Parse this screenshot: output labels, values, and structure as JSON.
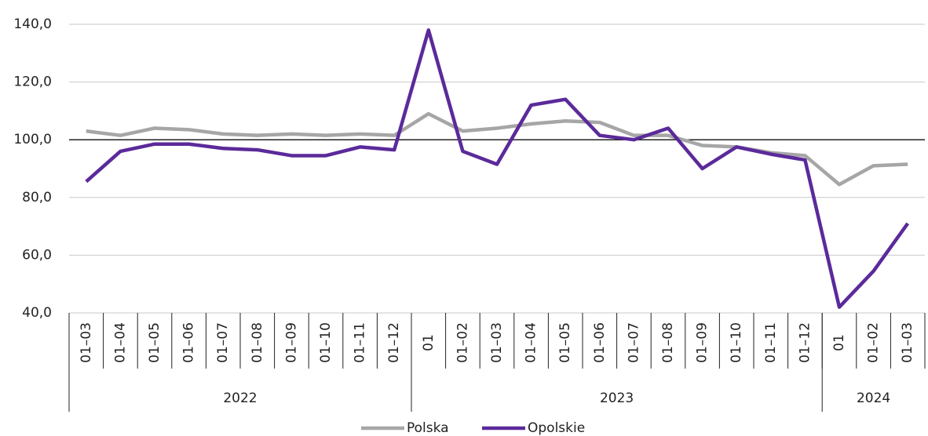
{
  "chart_data": {
    "type": "line",
    "categories": [
      "01–03",
      "01–04",
      "01–05",
      "01–06",
      "01–07",
      "01–08",
      "01–09",
      "01–10",
      "01–11",
      "01–12",
      "01",
      "01–02",
      "01–03",
      "01–04",
      "01–05",
      "01–06",
      "01–07",
      "01–08",
      "01–09",
      "01–10",
      "01–11",
      "01–12",
      "01",
      "01–02",
      "01–03"
    ],
    "groups": [
      {
        "name": "2022",
        "count": 10
      },
      {
        "name": "2023",
        "count": 12
      },
      {
        "name": "2024",
        "count": 3
      }
    ],
    "series": [
      {
        "name": "Polska",
        "color": "#a6a6a6",
        "values": [
          103,
          101.5,
          104,
          103.5,
          102,
          101.5,
          102,
          101.5,
          102,
          101.5,
          109,
          103,
          104,
          105.5,
          106.5,
          106,
          101.5,
          101.5,
          98,
          97.5,
          95.5,
          94.5,
          84.5,
          91,
          91.5
        ]
      },
      {
        "name": "Opolskie",
        "color": "#5b2a9a",
        "values": [
          85.5,
          96,
          98.5,
          98.5,
          97,
          96.5,
          94.5,
          94.5,
          97.5,
          96.5,
          138,
          96,
          91.5,
          112,
          114,
          101.5,
          100,
          104,
          90,
          97.5,
          95,
          93,
          42,
          54.5,
          71
        ]
      }
    ],
    "ylim": [
      40,
      140
    ],
    "yticks": [
      {
        "value": 40,
        "label": "40,0"
      },
      {
        "value": 60,
        "label": "60,0"
      },
      {
        "value": 80,
        "label": "80,0"
      },
      {
        "value": 100,
        "label": "100,0"
      },
      {
        "value": 120,
        "label": "120,0"
      },
      {
        "value": 140,
        "label": "140,0"
      }
    ],
    "baseline": 100,
    "grid": true,
    "legend": "bottom"
  }
}
